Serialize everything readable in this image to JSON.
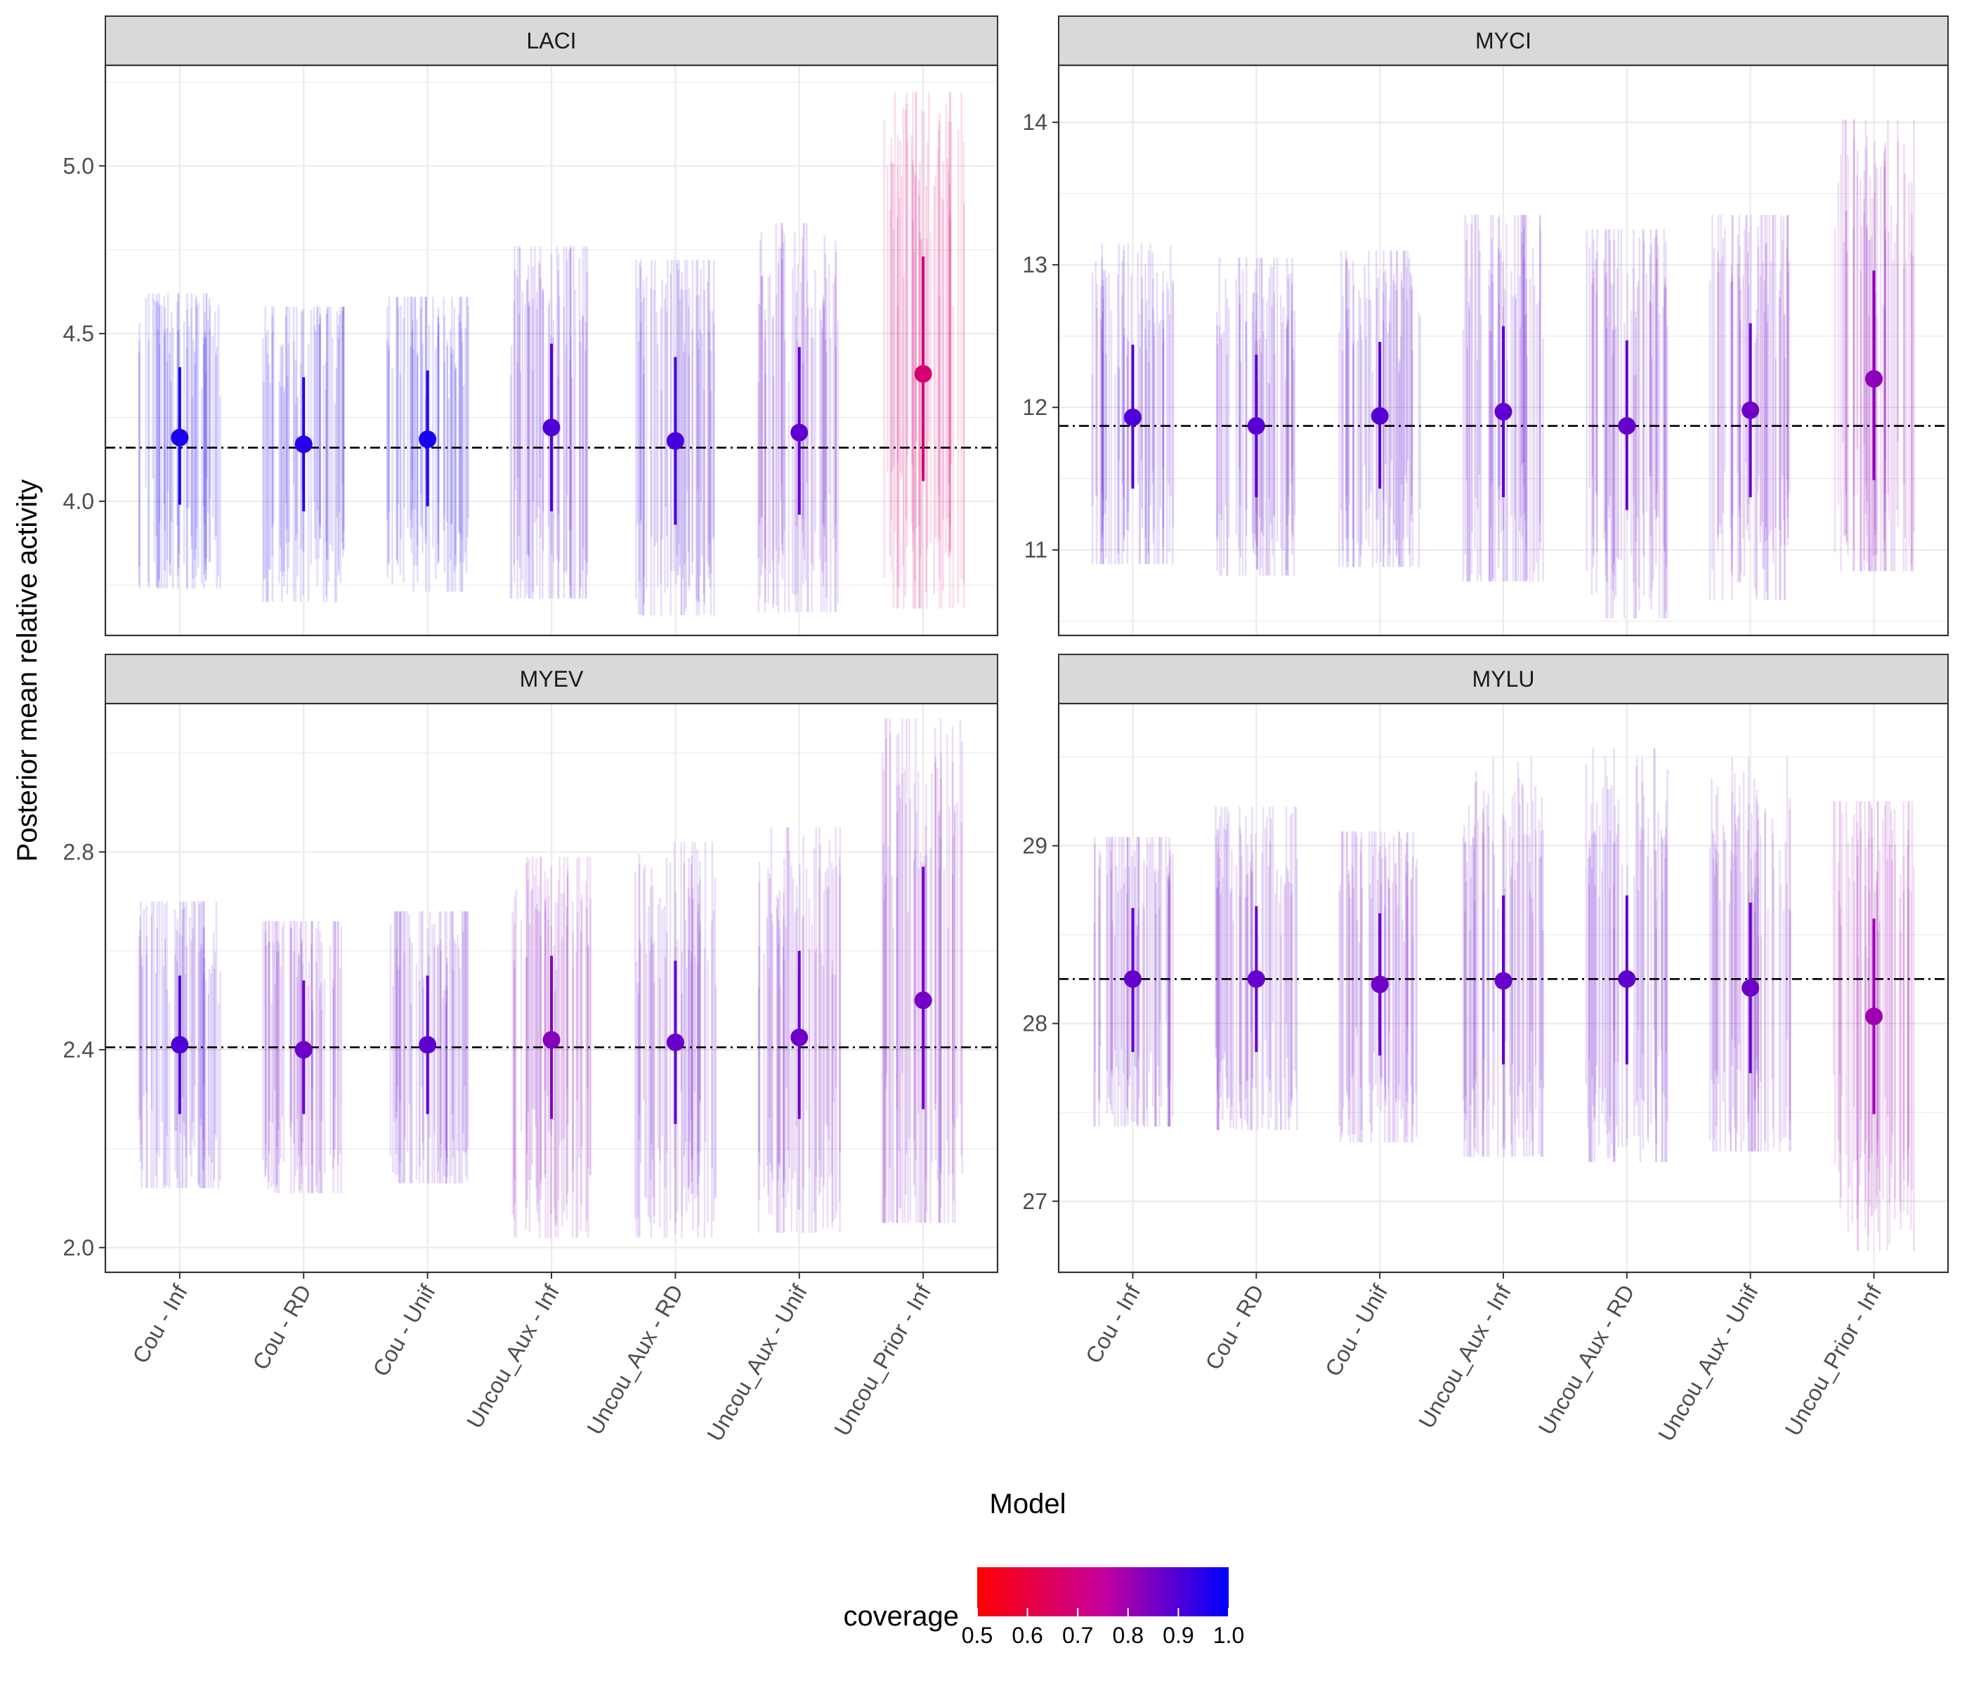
{
  "figure": {
    "ylabel": "Posterior mean relative activity",
    "xlabel": "Model",
    "legend": {
      "title": "coverage",
      "position": "bottom",
      "range": [
        0.5,
        1.0
      ],
      "ticks": [
        "0.5",
        "0.6",
        "0.7",
        "0.8",
        "0.9",
        "1.0"
      ],
      "color_low": "#ff0000",
      "color_high": "#0000ff"
    }
  },
  "chart_data": [
    {
      "type": "pointrange",
      "facet": "LACI",
      "categories": [
        "Cou - Inf",
        "Cou - RD",
        "Cou - Unif",
        "Uncou_Aux - Inf",
        "Uncou_Aux - RD",
        "Uncou_Aux - Unif",
        "Uncou_Prior - Inf"
      ],
      "ylim": [
        3.6,
        5.3
      ],
      "yticks": [
        4.0,
        4.5,
        5.0
      ],
      "ytick_labels": [
        "4.0",
        "4.5",
        "5.0"
      ],
      "reference_line": 4.16,
      "mean": [
        4.19,
        4.17,
        4.185,
        4.22,
        4.18,
        4.205,
        4.38
      ],
      "lower": [
        3.99,
        3.97,
        3.985,
        3.97,
        3.93,
        3.96,
        4.06
      ],
      "upper": [
        4.4,
        4.37,
        4.39,
        4.47,
        4.43,
        4.46,
        4.73
      ],
      "coverage": [
        0.97,
        0.95,
        0.97,
        0.9,
        0.91,
        0.88,
        0.68
      ],
      "replicate_spread": [
        [
          3.74,
          4.62
        ],
        [
          3.7,
          4.58
        ],
        [
          3.73,
          4.61
        ],
        [
          3.71,
          4.76
        ],
        [
          3.66,
          4.72
        ],
        [
          3.67,
          4.83
        ],
        [
          3.68,
          5.22
        ]
      ],
      "grid": true
    },
    {
      "type": "pointrange",
      "facet": "MYCI",
      "categories": [
        "Cou - Inf",
        "Cou - RD",
        "Cou - Unif",
        "Uncou_Aux - Inf",
        "Uncou_Aux - RD",
        "Uncou_Aux - Unif",
        "Uncou_Prior - Inf"
      ],
      "ylim": [
        10.4,
        14.4
      ],
      "yticks": [
        11,
        12,
        13,
        14
      ],
      "ytick_labels": [
        "11",
        "12",
        "13",
        "14"
      ],
      "reference_line": 11.87,
      "mean": [
        11.93,
        11.87,
        11.94,
        11.97,
        11.87,
        11.98,
        12.2
      ],
      "lower": [
        11.43,
        11.37,
        11.43,
        11.37,
        11.28,
        11.37,
        11.49
      ],
      "upper": [
        12.44,
        12.37,
        12.46,
        12.57,
        12.47,
        12.59,
        12.96
      ],
      "coverage": [
        0.9,
        0.89,
        0.89,
        0.88,
        0.87,
        0.86,
        0.82
      ],
      "replicate_spread": [
        [
          10.9,
          13.15
        ],
        [
          10.82,
          13.05
        ],
        [
          10.88,
          13.1
        ],
        [
          10.78,
          13.35
        ],
        [
          10.52,
          13.25
        ],
        [
          10.65,
          13.35
        ],
        [
          10.85,
          14.02
        ]
      ],
      "grid": true
    },
    {
      "type": "pointrange",
      "facet": "MYEV",
      "categories": [
        "Cou - Inf",
        "Cou - RD",
        "Cou - Unif",
        "Uncou_Aux - Inf",
        "Uncou_Aux - RD",
        "Uncou_Aux - Unif",
        "Uncou_Prior - Inf"
      ],
      "ylim": [
        1.95,
        3.1
      ],
      "yticks": [
        2.0,
        2.4,
        2.8
      ],
      "ytick_labels": [
        "2.0",
        "2.4",
        "2.8"
      ],
      "reference_line": 2.405,
      "mean": [
        2.41,
        2.4,
        2.41,
        2.42,
        2.415,
        2.425,
        2.5
      ],
      "lower": [
        2.27,
        2.27,
        2.27,
        2.26,
        2.25,
        2.26,
        2.28
      ],
      "upper": [
        2.55,
        2.54,
        2.55,
        2.59,
        2.58,
        2.6,
        2.77
      ],
      "coverage": [
        0.9,
        0.86,
        0.88,
        0.83,
        0.87,
        0.86,
        0.85
      ],
      "replicate_spread": [
        [
          2.12,
          2.7
        ],
        [
          2.11,
          2.66
        ],
        [
          2.13,
          2.68
        ],
        [
          2.02,
          2.79
        ],
        [
          2.02,
          2.82
        ],
        [
          2.03,
          2.85
        ],
        [
          2.05,
          3.07
        ]
      ],
      "grid": true
    },
    {
      "type": "pointrange",
      "facet": "MYLU",
      "categories": [
        "Cou - Inf",
        "Cou - RD",
        "Cou - Unif",
        "Uncou_Aux - Inf",
        "Uncou_Aux - RD",
        "Uncou_Aux - Unif",
        "Uncou_Prior - Inf"
      ],
      "ylim": [
        26.6,
        29.8
      ],
      "yticks": [
        27,
        28,
        29
      ],
      "ytick_labels": [
        "27",
        "28",
        "29"
      ],
      "reference_line": 28.25,
      "mean": [
        28.25,
        28.25,
        28.22,
        28.24,
        28.25,
        28.2,
        28.04
      ],
      "lower": [
        27.84,
        27.84,
        27.82,
        27.77,
        27.77,
        27.72,
        27.49
      ],
      "upper": [
        28.65,
        28.66,
        28.62,
        28.72,
        28.72,
        28.68,
        28.59
      ],
      "coverage": [
        0.87,
        0.87,
        0.86,
        0.87,
        0.88,
        0.86,
        0.8
      ],
      "replicate_spread": [
        [
          27.42,
          29.05
        ],
        [
          27.4,
          29.22
        ],
        [
          27.33,
          29.08
        ],
        [
          27.25,
          29.5
        ],
        [
          27.22,
          29.55
        ],
        [
          27.28,
          29.5
        ],
        [
          26.72,
          29.25
        ]
      ],
      "grid": true
    }
  ]
}
